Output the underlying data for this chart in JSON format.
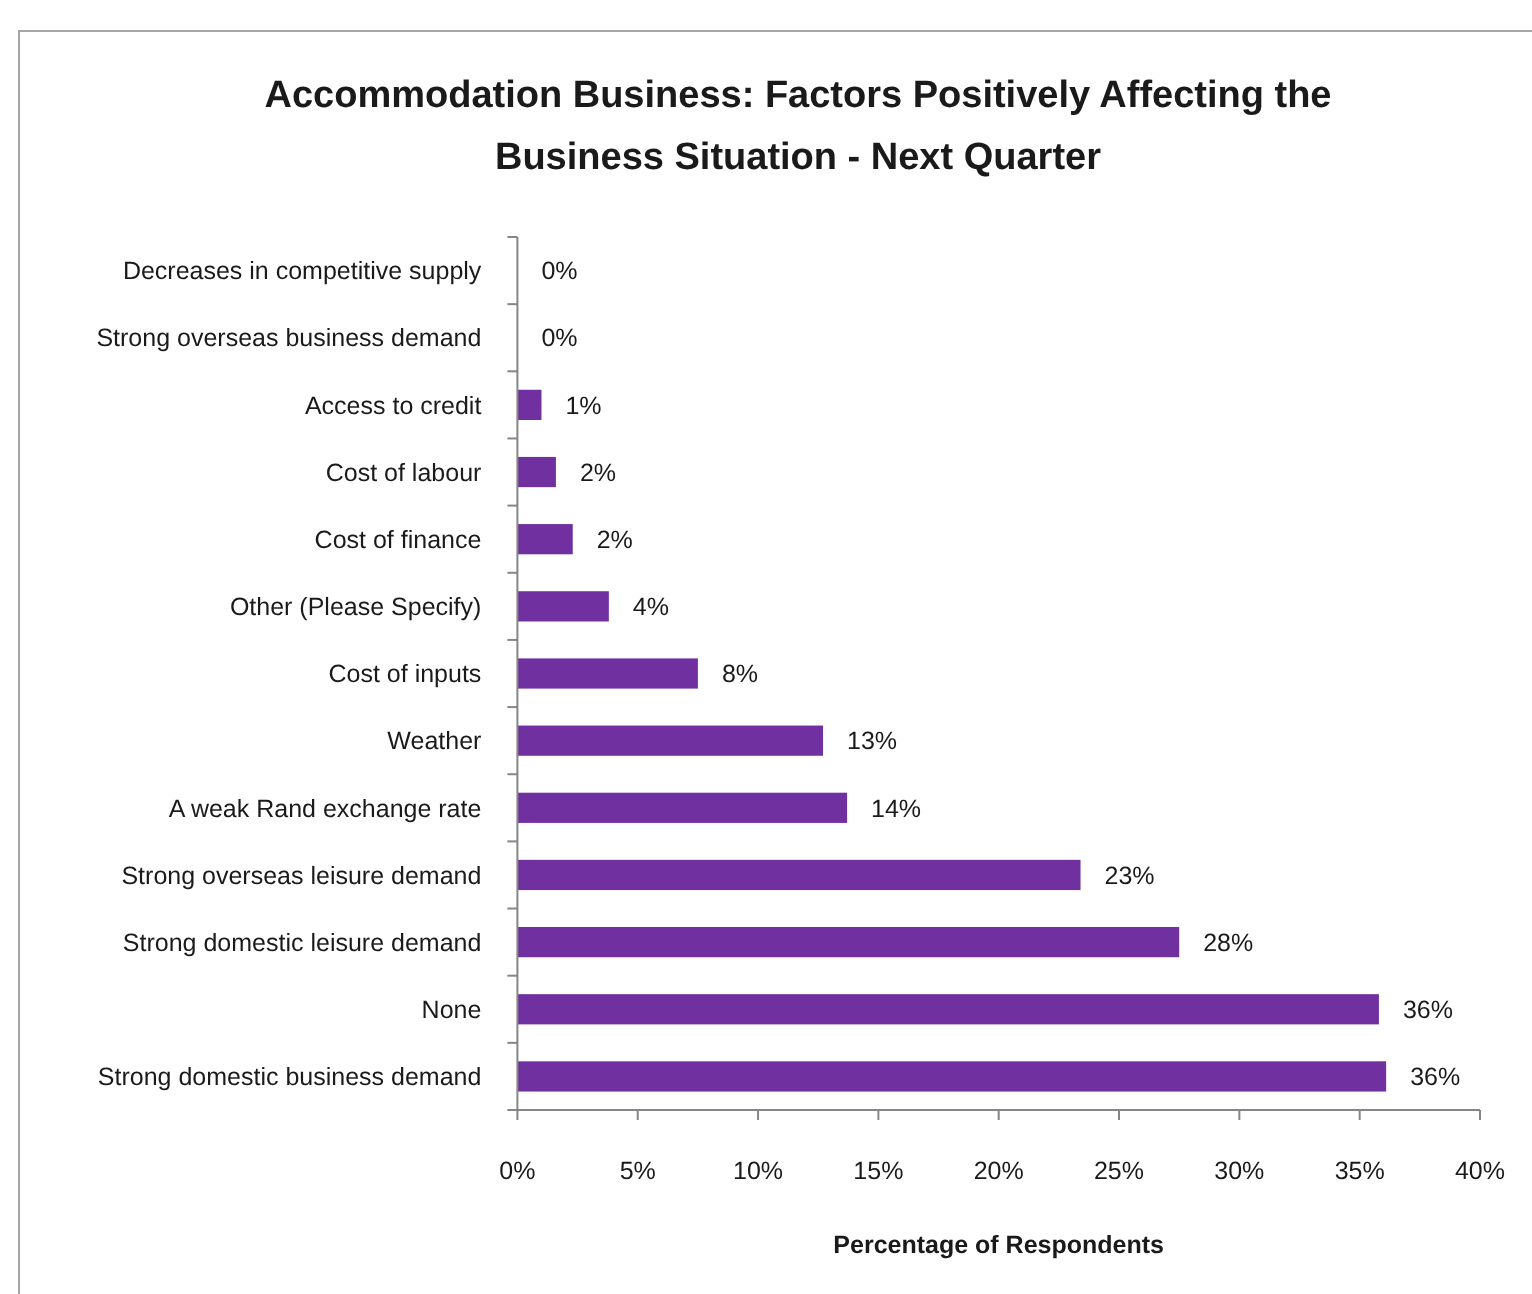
{
  "chart_data": {
    "type": "bar",
    "orientation": "horizontal",
    "title": "Accommodation Business: Factors Positively Affecting the Business Situation - Next Quarter",
    "xlabel": "Percentage of Respondents",
    "categories": [
      "Decreases in competitive supply",
      "Strong overseas business demand",
      "Access to credit",
      "Cost of labour",
      "Cost of finance",
      "Other (Please Specify)",
      "Cost of inputs",
      "Weather",
      "A weak Rand exchange rate",
      "Strong overseas leisure demand",
      "Strong domestic leisure demand",
      "None",
      "Strong domestic business demand"
    ],
    "values": [
      0,
      0,
      1.0,
      1.6,
      2.3,
      3.8,
      7.5,
      12.7,
      13.7,
      23.4,
      27.5,
      35.8,
      36.1
    ],
    "value_labels": [
      "0%",
      "0%",
      "1%",
      "2%",
      "2%",
      "4%",
      "8%",
      "13%",
      "14%",
      "23%",
      "28%",
      "36%",
      "36%"
    ],
    "color": "#7030a0",
    "xlim": [
      0,
      40
    ],
    "xticks": [
      {
        "value": 0,
        "label": "0%"
      },
      {
        "value": 5,
        "label": "5%"
      },
      {
        "value": 10,
        "label": "10%"
      },
      {
        "value": 15,
        "label": "15%"
      },
      {
        "value": 20,
        "label": "20%"
      },
      {
        "value": 25,
        "label": "25%"
      },
      {
        "value": 30,
        "label": "30%"
      },
      {
        "value": 35,
        "label": "35%"
      },
      {
        "value": 40,
        "label": "40%"
      }
    ]
  }
}
